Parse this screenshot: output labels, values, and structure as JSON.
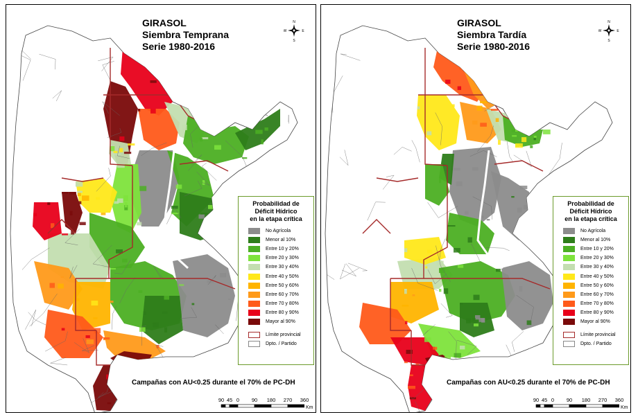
{
  "panels": [
    {
      "id": "temprana",
      "title_lines": [
        "GIRASOL",
        "Siembra Temprana",
        "Serie 1980-2016"
      ],
      "scheme": "early"
    },
    {
      "id": "tardia",
      "title_lines": [
        "GIRASOL",
        "Siembra Tardía",
        "Serie 1980-2016"
      ],
      "scheme": "late"
    }
  ],
  "compass": {
    "n": "N",
    "s": "S",
    "e": "E",
    "w": "W"
  },
  "legend": {
    "title_lines": [
      "Probabilidad de",
      "Déficit Hídrico",
      "en la etapa crítica"
    ],
    "classes": [
      {
        "label": "No Agrícola",
        "color": "#8c8c8c"
      },
      {
        "label": "Menor al 10%",
        "color": "#2e7d1a"
      },
      {
        "label": "Entre 10 y 20%",
        "color": "#4caf23"
      },
      {
        "label": "Entre 20 y 30%",
        "color": "#7ee33c"
      },
      {
        "label": "Entre 30 y 40%",
        "color": "#c3deb0"
      },
      {
        "label": "Entre 40 y 50%",
        "color": "#ffe81a"
      },
      {
        "label": "Entre 50 y 60%",
        "color": "#ffb400"
      },
      {
        "label": "Entre 60 y 70%",
        "color": "#ff9a1a"
      },
      {
        "label": "Entre 70 y 80%",
        "color": "#ff5a1a"
      },
      {
        "label": "Entre 80 y 90%",
        "color": "#e8001a"
      },
      {
        "label": "Mayor al 90%",
        "color": "#7a0a0a"
      }
    ],
    "extras": [
      {
        "label": "Límite provincial",
        "type": "outline"
      },
      {
        "label": "Dpto. / Partido",
        "type": "dpto"
      }
    ]
  },
  "footnote": "Campañas con AU<0.25 durante el 70% de PC-DH",
  "scalebar": {
    "labels": [
      "90",
      "45",
      "0",
      "90",
      "180",
      "270",
      "360"
    ],
    "unit": "Km"
  },
  "colors": {
    "map_outline": "#555555",
    "province_line": "#a52a2a",
    "land": "#ffffff"
  }
}
